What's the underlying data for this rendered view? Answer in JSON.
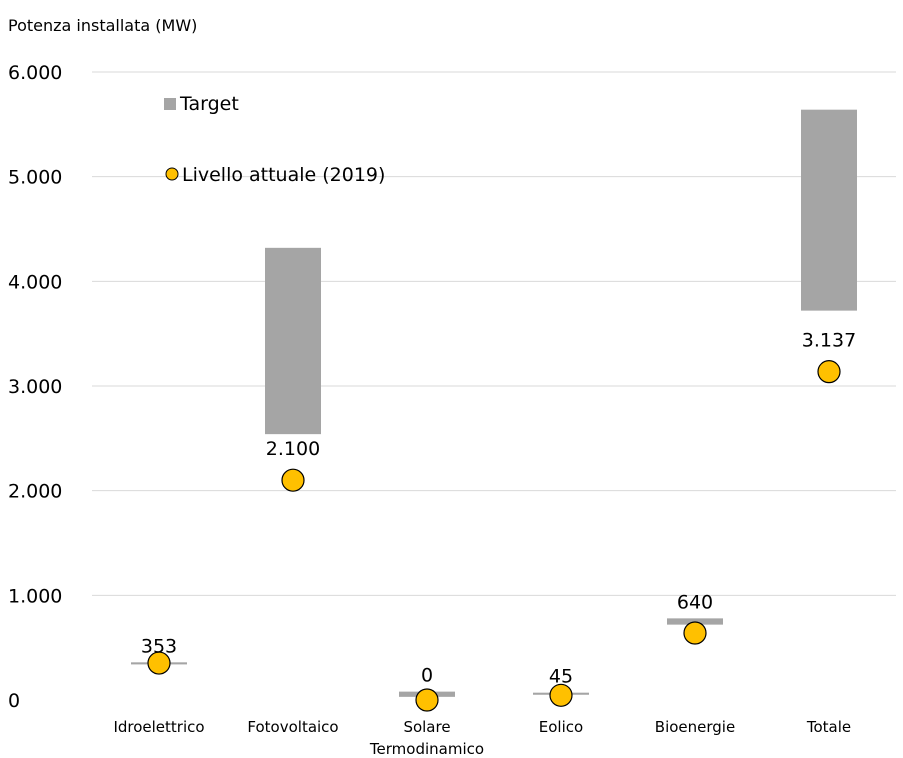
{
  "chart_data": {
    "type": "floating-bar-with-markers",
    "ylabel": "Potenza installata (MW)",
    "ylim": [
      0,
      6000
    ],
    "yticks": [
      0,
      1000,
      2000,
      3000,
      4000,
      5000,
      6000
    ],
    "ytick_labels": [
      "0",
      "1.000",
      "2.000",
      "3.000",
      "4.000",
      "5.000",
      "6.000"
    ],
    "grid": true,
    "legend_position": "top-left",
    "categories": [
      "Idroelettrico",
      "Fotovoltaico",
      "Solare Termodinamico",
      "Eolico",
      "Bioenergie",
      "Totale"
    ],
    "category_labels": [
      [
        "Idroelettrico"
      ],
      [
        "Fotovoltaico"
      ],
      [
        "Solare",
        "Termodinamico"
      ],
      [
        "Eolico"
      ],
      [
        "Bioenergie"
      ],
      [
        "Totale"
      ]
    ],
    "series": [
      {
        "name": "Target",
        "kind": "range",
        "color": "#a5a5a5",
        "low": [
          340,
          2540,
          30,
          50,
          720,
          3720
        ],
        "high": [
          360,
          4320,
          80,
          70,
          780,
          5640
        ]
      },
      {
        "name": "Livello attuale (2019)",
        "kind": "marker",
        "color": "#ffc000",
        "values": [
          353,
          2100,
          0,
          45,
          640,
          3137
        ],
        "labels": [
          "353",
          "2.100",
          "0",
          "45",
          "640",
          "3.137"
        ]
      }
    ]
  }
}
